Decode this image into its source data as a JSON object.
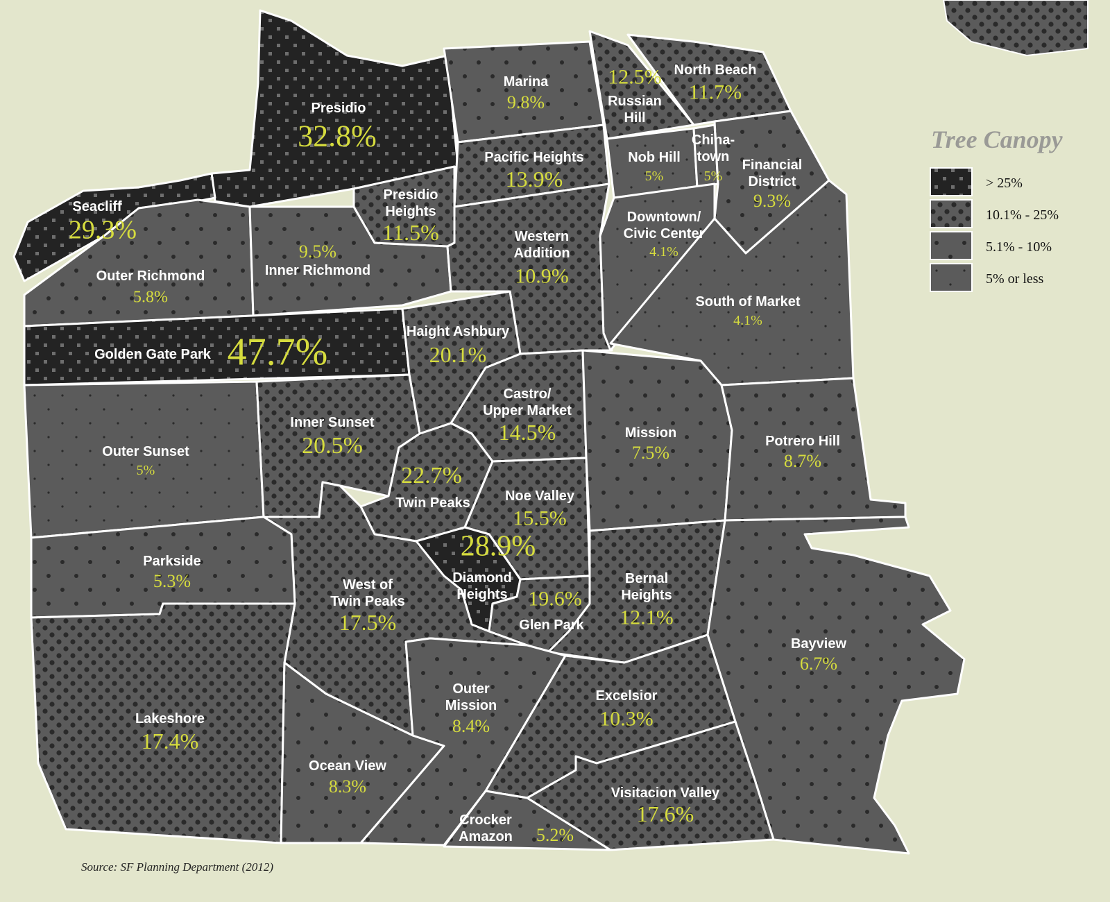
{
  "colors": {
    "background": "#e3e6cc",
    "high": "#232323",
    "mid": "#5b5b5b",
    "value_text": "#d6dc3e",
    "border": "#ffffff"
  },
  "legend": {
    "title": "Tree Canopy",
    "items": [
      {
        "key": "c1",
        "label": "> 25%"
      },
      {
        "key": "c2",
        "label": "10.1% - 25%"
      },
      {
        "key": "c3",
        "label": "5.1% - 10%"
      },
      {
        "key": "c4",
        "label": "5% or less"
      }
    ]
  },
  "source": "Source: SF Planning Department (2012)",
  "neighborhoods": [
    {
      "id": "presidio",
      "name_lines": [
        "Presidio"
      ],
      "value": "32.8%",
      "category": "c1"
    },
    {
      "id": "seacliff",
      "name_lines": [
        "Seacliff"
      ],
      "value": "29.3%",
      "category": "c1"
    },
    {
      "id": "outer-richmond",
      "name_lines": [
        "Outer Richmond"
      ],
      "value": "5.8%",
      "category": "c3"
    },
    {
      "id": "inner-richmond",
      "name_lines": [
        "Inner Richmond"
      ],
      "value": "9.5%",
      "category": "c3"
    },
    {
      "id": "presidio-heights",
      "name_lines": [
        "Presidio",
        "Heights"
      ],
      "value": "11.5%",
      "category": "c2"
    },
    {
      "id": "marina",
      "name_lines": [
        "Marina"
      ],
      "value": "9.8%",
      "category": "c3"
    },
    {
      "id": "pacific-heights",
      "name_lines": [
        "Pacific Heights"
      ],
      "value": "13.9%",
      "category": "c2"
    },
    {
      "id": "western-addition",
      "name_lines": [
        "Western",
        "Addition"
      ],
      "value": "10.9%",
      "category": "c2"
    },
    {
      "id": "russian-hill",
      "name_lines": [
        "Russian",
        "Hill"
      ],
      "value": "12.5%",
      "category": "c2"
    },
    {
      "id": "north-beach",
      "name_lines": [
        "North Beach"
      ],
      "value": "11.7%",
      "category": "c2"
    },
    {
      "id": "nob-hill",
      "name_lines": [
        "Nob Hill"
      ],
      "value": "5%",
      "category": "c4"
    },
    {
      "id": "chinatown",
      "name_lines": [
        "China-",
        "town"
      ],
      "value": "5%",
      "category": "c4"
    },
    {
      "id": "financial-district",
      "name_lines": [
        "Financial",
        "District"
      ],
      "value": "9.3%",
      "category": "c3"
    },
    {
      "id": "downtown-civic-center",
      "name_lines": [
        "Downtown/",
        "Civic Center"
      ],
      "value": "4.1%",
      "category": "c4"
    },
    {
      "id": "south-of-market",
      "name_lines": [
        "South of Market"
      ],
      "value": "4.1%",
      "category": "c4"
    },
    {
      "id": "golden-gate-park",
      "name_lines": [
        "Golden Gate Park"
      ],
      "value": "47.7%",
      "category": "c1"
    },
    {
      "id": "haight-ashbury",
      "name_lines": [
        "Haight Ashbury"
      ],
      "value": "20.1%",
      "category": "c2"
    },
    {
      "id": "outer-sunset",
      "name_lines": [
        "Outer Sunset"
      ],
      "value": "5%",
      "category": "c4"
    },
    {
      "id": "inner-sunset",
      "name_lines": [
        "Inner Sunset"
      ],
      "value": "20.5%",
      "category": "c2"
    },
    {
      "id": "castro-upper-market",
      "name_lines": [
        "Castro/",
        "Upper Market"
      ],
      "value": "14.5%",
      "category": "c2"
    },
    {
      "id": "twin-peaks",
      "name_lines": [
        "Twin Peaks"
      ],
      "value": "22.7%",
      "category": "c2"
    },
    {
      "id": "noe-valley",
      "name_lines": [
        "Noe Valley"
      ],
      "value": "15.5%",
      "category": "c2"
    },
    {
      "id": "diamond-heights",
      "name_lines": [
        "Diamond",
        "Heights"
      ],
      "value": "28.9%",
      "category": "c1"
    },
    {
      "id": "glen-park",
      "name_lines": [
        "Glen Park"
      ],
      "value": "19.6%",
      "category": "c2"
    },
    {
      "id": "mission",
      "name_lines": [
        "Mission"
      ],
      "value": "7.5%",
      "category": "c3"
    },
    {
      "id": "potrero-hill",
      "name_lines": [
        "Potrero Hill"
      ],
      "value": "8.7%",
      "category": "c3"
    },
    {
      "id": "bernal-heights",
      "name_lines": [
        "Bernal",
        "Heights"
      ],
      "value": "12.1%",
      "category": "c2"
    },
    {
      "id": "bayview",
      "name_lines": [
        "Bayview"
      ],
      "value": "6.7%",
      "category": "c3"
    },
    {
      "id": "west-of-twin-peaks",
      "name_lines": [
        "West of",
        "Twin Peaks"
      ],
      "value": "17.5%",
      "category": "c2"
    },
    {
      "id": "parkside",
      "name_lines": [
        "Parkside"
      ],
      "value": "5.3%",
      "category": "c3"
    },
    {
      "id": "lakeshore",
      "name_lines": [
        "Lakeshore"
      ],
      "value": "17.4%",
      "category": "c2"
    },
    {
      "id": "ocean-view",
      "name_lines": [
        "Ocean View"
      ],
      "value": "8.3%",
      "category": "c3"
    },
    {
      "id": "outer-mission",
      "name_lines": [
        "Outer",
        "Mission"
      ],
      "value": "8.4%",
      "category": "c3"
    },
    {
      "id": "excelsior",
      "name_lines": [
        "Excelsior"
      ],
      "value": "10.3%",
      "category": "c2"
    },
    {
      "id": "crocker-amazon",
      "name_lines": [
        "Crocker",
        "Amazon"
      ],
      "value": "5.2%",
      "category": "c3"
    },
    {
      "id": "visitacion-valley",
      "name_lines": [
        "Visitacion Valley"
      ],
      "value": "17.6%",
      "category": "c2"
    }
  ]
}
